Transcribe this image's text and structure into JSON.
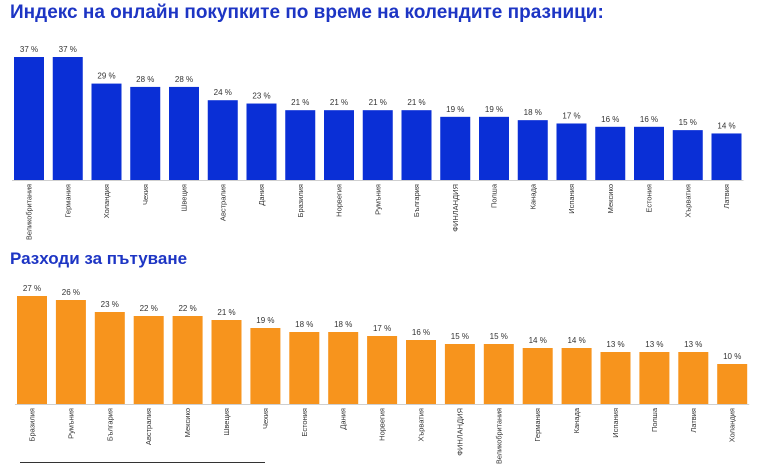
{
  "chart_data": [
    {
      "type": "bar",
      "title": "Индекс на онлайн покупките по време на колендите празници:",
      "color": "#0a2fd6",
      "value_suffix": " %",
      "categories": [
        "Великобритания",
        "Германия",
        "Холандия",
        "Чехия",
        "Швеция",
        "Австралия",
        "Дания",
        "Бразилия",
        "Норвегия",
        "Румъния",
        "България",
        "ФИНЛАНДИЯ",
        "Полша",
        "Канада",
        "Испания",
        "Мексико",
        "Естония",
        "Хърватия",
        "Латвия"
      ],
      "values": [
        37,
        37,
        29,
        28,
        28,
        24,
        23,
        21,
        21,
        21,
        21,
        19,
        19,
        18,
        17,
        16,
        16,
        15,
        14
      ],
      "ylim": [
        0,
        40
      ],
      "grid": false
    },
    {
      "type": "bar",
      "title": "Разходи за пътуване",
      "color": "#f7941d",
      "value_suffix": " %",
      "categories": [
        "Бразилия",
        "Румъния",
        "България",
        "Австралия",
        "Мексико",
        "Швеция",
        "Чехия",
        "Естония",
        "Дания",
        "Норвегия",
        "Хърватия",
        "ФИНЛАНДИЯ",
        "Великобритания",
        "Германия",
        "Канада",
        "Испания",
        "Полша",
        "Латвия",
        "Холандия"
      ],
      "values": [
        27,
        26,
        23,
        22,
        22,
        21,
        19,
        18,
        18,
        17,
        16,
        15,
        15,
        14,
        14,
        13,
        13,
        13,
        10
      ],
      "ylim": [
        0,
        30
      ],
      "grid": false
    }
  ]
}
